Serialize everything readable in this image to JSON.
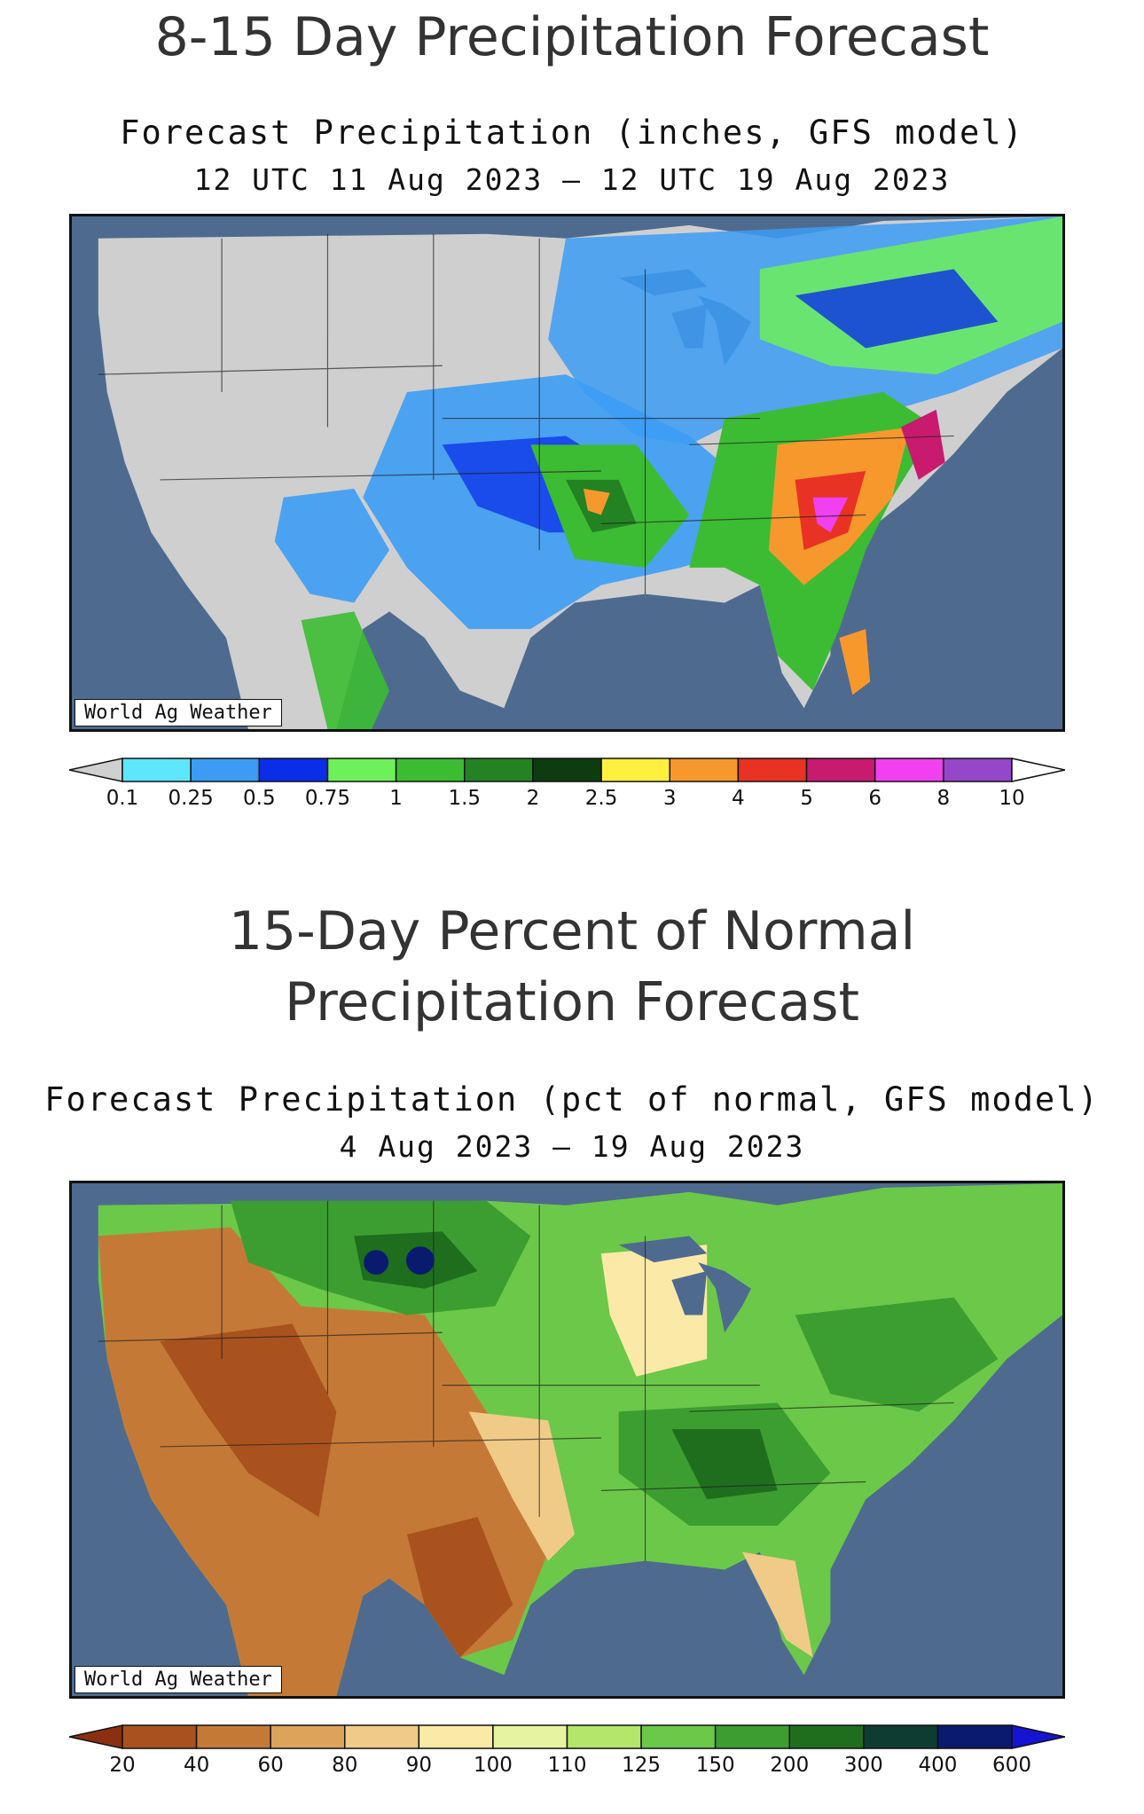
{
  "panel1": {
    "heading": "8-15 Day Precipitation Forecast",
    "figure_title": "Forecast Precipitation (inches, GFS model)",
    "period": "12 UTC 11 Aug 2023 – 12 UTC 19 Aug 2023",
    "credit": "World Ag Weather",
    "legend": {
      "ticks": [
        "0.1",
        "0.25",
        "0.5",
        "0.75",
        "1",
        "1.5",
        "2",
        "2.5",
        "3",
        "4",
        "5",
        "6",
        "8",
        "10"
      ],
      "colors": [
        "#d0d0d0",
        "#5ee6ff",
        "#3c9cf4",
        "#0a2ee8",
        "#6ef05a",
        "#3cbc32",
        "#238222",
        "#0c3c10",
        "#fff040",
        "#f7982c",
        "#e83224",
        "#c81a6e",
        "#f040f0",
        "#9646c8",
        "#ffffff"
      ]
    }
  },
  "panel2": {
    "heading": "15-Day Percent of Normal Precipitation Forecast",
    "figure_title": "Forecast Precipitation (pct of normal, GFS model)",
    "period": "4 Aug 2023 – 19 Aug 2023",
    "credit": "World Ag Weather",
    "legend": {
      "ticks": [
        "20",
        "40",
        "60",
        "80",
        "90",
        "100",
        "110",
        "125",
        "150",
        "200",
        "300",
        "400",
        "600"
      ],
      "colors": [
        "#8a3010",
        "#a9521e",
        "#c47a36",
        "#dea35a",
        "#f0cb88",
        "#fbe9a8",
        "#e6f4a0",
        "#b4e66c",
        "#6cc848",
        "#3c9e30",
        "#1e6e1e",
        "#0f3c32",
        "#0a1a6e",
        "#1414d2"
      ]
    }
  }
}
